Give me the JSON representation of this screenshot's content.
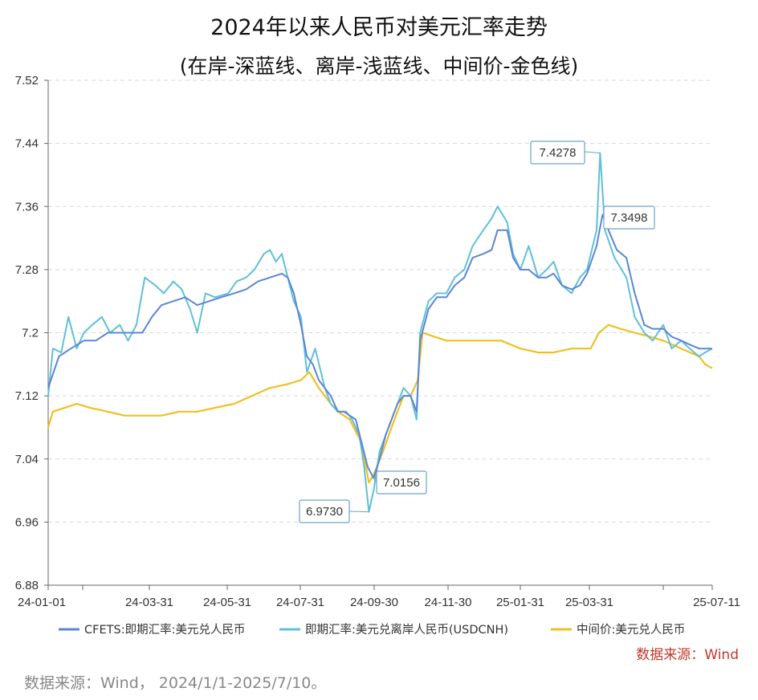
{
  "title": "2024年以来人民币对美元汇率走势",
  "subtitle": "(在岸-深蓝线、离岸-浅蓝线、中间价-金色线)",
  "source_label": "数据来源：Wind",
  "footnote": "数据来源：Wind， 2024/1/1-2025/7/10。",
  "colors": {
    "cfets": "#5b86d6",
    "usdcnh": "#5fc0d8",
    "central": "#f0c020",
    "grid": "#d9d9d9",
    "axis": "#666666"
  },
  "chart_data": {
    "type": "line",
    "title": "2024年以来人民币对美元汇率走势",
    "subtitle": "(在岸-深蓝线、离岸-浅蓝线、中间价-金色线)",
    "ylim": [
      6.88,
      7.52
    ],
    "yticks": [
      "6.88",
      "6.96",
      "7.04",
      "7.12",
      "7.2",
      "7.28",
      "7.36",
      "7.44",
      "7.52"
    ],
    "grid": true,
    "legend_position": "bottom",
    "x_tick_labels": [
      "24-01-01",
      "24-03-31",
      "24-05-31",
      "24-07-31",
      "24-09-30",
      "24-11-30",
      "25-01-31",
      "25-03-31",
      "25-07-11"
    ],
    "x_range": [
      "2024-01-01",
      "2025-07-11"
    ],
    "series": [
      {
        "name": "CFETS:即期汇率:美元兑人民币",
        "color": "#5b86d6",
        "points": [
          [
            "2024-01-01",
            7.13
          ],
          [
            "2024-01-10",
            7.17
          ],
          [
            "2024-01-20",
            7.18
          ],
          [
            "2024-01-31",
            7.19
          ],
          [
            "2024-02-10",
            7.19
          ],
          [
            "2024-02-20",
            7.2
          ],
          [
            "2024-03-01",
            7.2
          ],
          [
            "2024-03-10",
            7.2
          ],
          [
            "2024-03-20",
            7.2
          ],
          [
            "2024-03-28",
            7.22
          ],
          [
            "2024-04-05",
            7.235
          ],
          [
            "2024-04-15",
            7.24
          ],
          [
            "2024-04-25",
            7.245
          ],
          [
            "2024-05-05",
            7.235
          ],
          [
            "2024-05-15",
            7.24
          ],
          [
            "2024-05-25",
            7.245
          ],
          [
            "2024-06-05",
            7.25
          ],
          [
            "2024-06-15",
            7.255
          ],
          [
            "2024-06-25",
            7.265
          ],
          [
            "2024-07-05",
            7.27
          ],
          [
            "2024-07-15",
            7.275
          ],
          [
            "2024-07-20",
            7.27
          ],
          [
            "2024-07-25",
            7.25
          ],
          [
            "2024-07-31",
            7.21
          ],
          [
            "2024-08-05",
            7.17
          ],
          [
            "2024-08-10",
            7.16
          ],
          [
            "2024-08-15",
            7.14
          ],
          [
            "2024-08-20",
            7.13
          ],
          [
            "2024-08-25",
            7.12
          ],
          [
            "2024-08-31",
            7.1
          ],
          [
            "2024-09-05",
            7.1
          ],
          [
            "2024-09-10",
            7.095
          ],
          [
            "2024-09-15",
            7.09
          ],
          [
            "2024-09-20",
            7.06
          ],
          [
            "2024-09-25",
            7.03
          ],
          [
            "2024-09-30",
            7.0156
          ],
          [
            "2024-10-05",
            7.04
          ],
          [
            "2024-10-10",
            7.07
          ],
          [
            "2024-10-15",
            7.09
          ],
          [
            "2024-10-20",
            7.11
          ],
          [
            "2024-10-25",
            7.12
          ],
          [
            "2024-10-31",
            7.12
          ],
          [
            "2024-11-05",
            7.1
          ],
          [
            "2024-11-08",
            7.19
          ],
          [
            "2024-11-15",
            7.23
          ],
          [
            "2024-11-22",
            7.245
          ],
          [
            "2024-11-30",
            7.245
          ],
          [
            "2024-12-07",
            7.26
          ],
          [
            "2024-12-15",
            7.27
          ],
          [
            "2024-12-22",
            7.295
          ],
          [
            "2024-12-31",
            7.3
          ],
          [
            "2025-01-07",
            7.305
          ],
          [
            "2025-01-12",
            7.33
          ],
          [
            "2025-01-20",
            7.33
          ],
          [
            "2025-01-25",
            7.295
          ],
          [
            "2025-01-31",
            7.28
          ],
          [
            "2025-02-07",
            7.28
          ],
          [
            "2025-02-15",
            7.27
          ],
          [
            "2025-02-22",
            7.27
          ],
          [
            "2025-02-28",
            7.275
          ],
          [
            "2025-03-07",
            7.26
          ],
          [
            "2025-03-15",
            7.255
          ],
          [
            "2025-03-22",
            7.26
          ],
          [
            "2025-03-28",
            7.275
          ],
          [
            "2025-04-05",
            7.31
          ],
          [
            "2025-04-10",
            7.3498
          ],
          [
            "2025-04-15",
            7.33
          ],
          [
            "2025-04-22",
            7.305
          ],
          [
            "2025-04-30",
            7.295
          ],
          [
            "2025-05-07",
            7.25
          ],
          [
            "2025-05-15",
            7.21
          ],
          [
            "2025-05-22",
            7.205
          ],
          [
            "2025-05-31",
            7.205
          ],
          [
            "2025-06-07",
            7.195
          ],
          [
            "2025-06-15",
            7.19
          ],
          [
            "2025-06-22",
            7.185
          ],
          [
            "2025-06-30",
            7.18
          ],
          [
            "2025-07-05",
            7.18
          ],
          [
            "2025-07-11",
            7.18
          ]
        ]
      },
      {
        "name": "即期汇率:美元兑离岸人民币(USDCNH)",
        "color": "#5fc0d8",
        "points": [
          [
            "2024-01-01",
            7.12
          ],
          [
            "2024-01-05",
            7.18
          ],
          [
            "2024-01-12",
            7.175
          ],
          [
            "2024-01-18",
            7.22
          ],
          [
            "2024-01-25",
            7.18
          ],
          [
            "2024-01-31",
            7.2
          ],
          [
            "2024-02-07",
            7.21
          ],
          [
            "2024-02-15",
            7.22
          ],
          [
            "2024-02-22",
            7.2
          ],
          [
            "2024-03-01",
            7.21
          ],
          [
            "2024-03-08",
            7.19
          ],
          [
            "2024-03-15",
            7.21
          ],
          [
            "2024-03-22",
            7.27
          ],
          [
            "2024-03-31",
            7.26
          ],
          [
            "2024-04-07",
            7.25
          ],
          [
            "2024-04-15",
            7.265
          ],
          [
            "2024-04-22",
            7.255
          ],
          [
            "2024-04-29",
            7.23
          ],
          [
            "2024-05-05",
            7.2
          ],
          [
            "2024-05-12",
            7.25
          ],
          [
            "2024-05-20",
            7.245
          ],
          [
            "2024-05-31",
            7.25
          ],
          [
            "2024-06-07",
            7.265
          ],
          [
            "2024-06-15",
            7.27
          ],
          [
            "2024-06-22",
            7.28
          ],
          [
            "2024-06-30",
            7.3
          ],
          [
            "2024-07-05",
            7.305
          ],
          [
            "2024-07-10",
            7.29
          ],
          [
            "2024-07-15",
            7.3
          ],
          [
            "2024-07-20",
            7.27
          ],
          [
            "2024-07-25",
            7.24
          ],
          [
            "2024-07-31",
            7.22
          ],
          [
            "2024-08-05",
            7.15
          ],
          [
            "2024-08-12",
            7.18
          ],
          [
            "2024-08-20",
            7.13
          ],
          [
            "2024-08-25",
            7.11
          ],
          [
            "2024-08-31",
            7.1
          ],
          [
            "2024-09-07",
            7.1
          ],
          [
            "2024-09-12",
            7.09
          ],
          [
            "2024-09-18",
            7.07
          ],
          [
            "2024-09-22",
            7.03
          ],
          [
            "2024-09-26",
            6.973
          ],
          [
            "2024-09-30",
            7.0
          ],
          [
            "2024-10-05",
            7.05
          ],
          [
            "2024-10-10",
            7.07
          ],
          [
            "2024-10-15",
            7.09
          ],
          [
            "2024-10-20",
            7.11
          ],
          [
            "2024-10-25",
            7.13
          ],
          [
            "2024-10-31",
            7.12
          ],
          [
            "2024-11-05",
            7.09
          ],
          [
            "2024-11-08",
            7.2
          ],
          [
            "2024-11-15",
            7.24
          ],
          [
            "2024-11-22",
            7.25
          ],
          [
            "2024-11-30",
            7.25
          ],
          [
            "2024-12-07",
            7.27
          ],
          [
            "2024-12-15",
            7.28
          ],
          [
            "2024-12-22",
            7.31
          ],
          [
            "2024-12-31",
            7.33
          ],
          [
            "2025-01-07",
            7.345
          ],
          [
            "2025-01-12",
            7.36
          ],
          [
            "2025-01-20",
            7.34
          ],
          [
            "2025-01-25",
            7.3
          ],
          [
            "2025-01-31",
            7.28
          ],
          [
            "2025-02-07",
            7.31
          ],
          [
            "2025-02-15",
            7.27
          ],
          [
            "2025-02-22",
            7.28
          ],
          [
            "2025-02-28",
            7.29
          ],
          [
            "2025-03-07",
            7.26
          ],
          [
            "2025-03-15",
            7.25
          ],
          [
            "2025-03-22",
            7.27
          ],
          [
            "2025-03-28",
            7.28
          ],
          [
            "2025-04-05",
            7.33
          ],
          [
            "2025-04-08",
            7.4278
          ],
          [
            "2025-04-12",
            7.33
          ],
          [
            "2025-04-20",
            7.295
          ],
          [
            "2025-04-30",
            7.27
          ],
          [
            "2025-05-07",
            7.22
          ],
          [
            "2025-05-15",
            7.2
          ],
          [
            "2025-05-22",
            7.19
          ],
          [
            "2025-05-31",
            7.21
          ],
          [
            "2025-06-07",
            7.18
          ],
          [
            "2025-06-15",
            7.19
          ],
          [
            "2025-06-22",
            7.18
          ],
          [
            "2025-06-30",
            7.17
          ],
          [
            "2025-07-05",
            7.175
          ],
          [
            "2025-07-11",
            7.18
          ]
        ]
      },
      {
        "name": "中间价:美元兑人民币",
        "color": "#f0c020",
        "points": [
          [
            "2024-01-01",
            7.08
          ],
          [
            "2024-01-05",
            7.1
          ],
          [
            "2024-01-15",
            7.105
          ],
          [
            "2024-01-25",
            7.11
          ],
          [
            "2024-02-05",
            7.105
          ],
          [
            "2024-02-20",
            7.1
          ],
          [
            "2024-03-05",
            7.095
          ],
          [
            "2024-03-20",
            7.095
          ],
          [
            "2024-04-05",
            7.095
          ],
          [
            "2024-04-20",
            7.1
          ],
          [
            "2024-05-05",
            7.1
          ],
          [
            "2024-05-20",
            7.105
          ],
          [
            "2024-06-05",
            7.11
          ],
          [
            "2024-06-20",
            7.12
          ],
          [
            "2024-07-05",
            7.13
          ],
          [
            "2024-07-20",
            7.135
          ],
          [
            "2024-07-31",
            7.14
          ],
          [
            "2024-08-07",
            7.15
          ],
          [
            "2024-08-15",
            7.13
          ],
          [
            "2024-08-25",
            7.11
          ],
          [
            "2024-08-31",
            7.1
          ],
          [
            "2024-09-10",
            7.09
          ],
          [
            "2024-09-20",
            7.06
          ],
          [
            "2024-09-26",
            7.01
          ],
          [
            "2024-09-30",
            7.02
          ],
          [
            "2024-10-08",
            7.05
          ],
          [
            "2024-10-15",
            7.08
          ],
          [
            "2024-10-25",
            7.12
          ],
          [
            "2024-10-31",
            7.12
          ],
          [
            "2024-11-06",
            7.14
          ],
          [
            "2024-11-10",
            7.2
          ],
          [
            "2024-11-20",
            7.195
          ],
          [
            "2024-11-30",
            7.19
          ],
          [
            "2024-12-15",
            7.19
          ],
          [
            "2024-12-31",
            7.19
          ],
          [
            "2025-01-15",
            7.19
          ],
          [
            "2025-01-31",
            7.18
          ],
          [
            "2025-02-15",
            7.175
          ],
          [
            "2025-02-28",
            7.175
          ],
          [
            "2025-03-15",
            7.18
          ],
          [
            "2025-03-31",
            7.18
          ],
          [
            "2025-04-07",
            7.2
          ],
          [
            "2025-04-15",
            7.21
          ],
          [
            "2025-04-25",
            7.205
          ],
          [
            "2025-05-07",
            7.2
          ],
          [
            "2025-05-20",
            7.195
          ],
          [
            "2025-05-31",
            7.19
          ],
          [
            "2025-06-15",
            7.18
          ],
          [
            "2025-06-30",
            7.17
          ],
          [
            "2025-07-05",
            7.16
          ],
          [
            "2025-07-11",
            7.155
          ]
        ]
      }
    ],
    "annotations": [
      {
        "label": "7.4278",
        "date": "2025-04-08",
        "value": 7.4278,
        "series": "USDCNH"
      },
      {
        "label": "7.3498",
        "date": "2025-04-10",
        "value": 7.3498,
        "series": "CFETS"
      },
      {
        "label": "7.0156",
        "date": "2024-09-30",
        "value": 7.0156,
        "series": "CFETS"
      },
      {
        "label": "6.9730",
        "date": "2024-09-26",
        "value": 6.973,
        "series": "USDCNH"
      }
    ]
  }
}
